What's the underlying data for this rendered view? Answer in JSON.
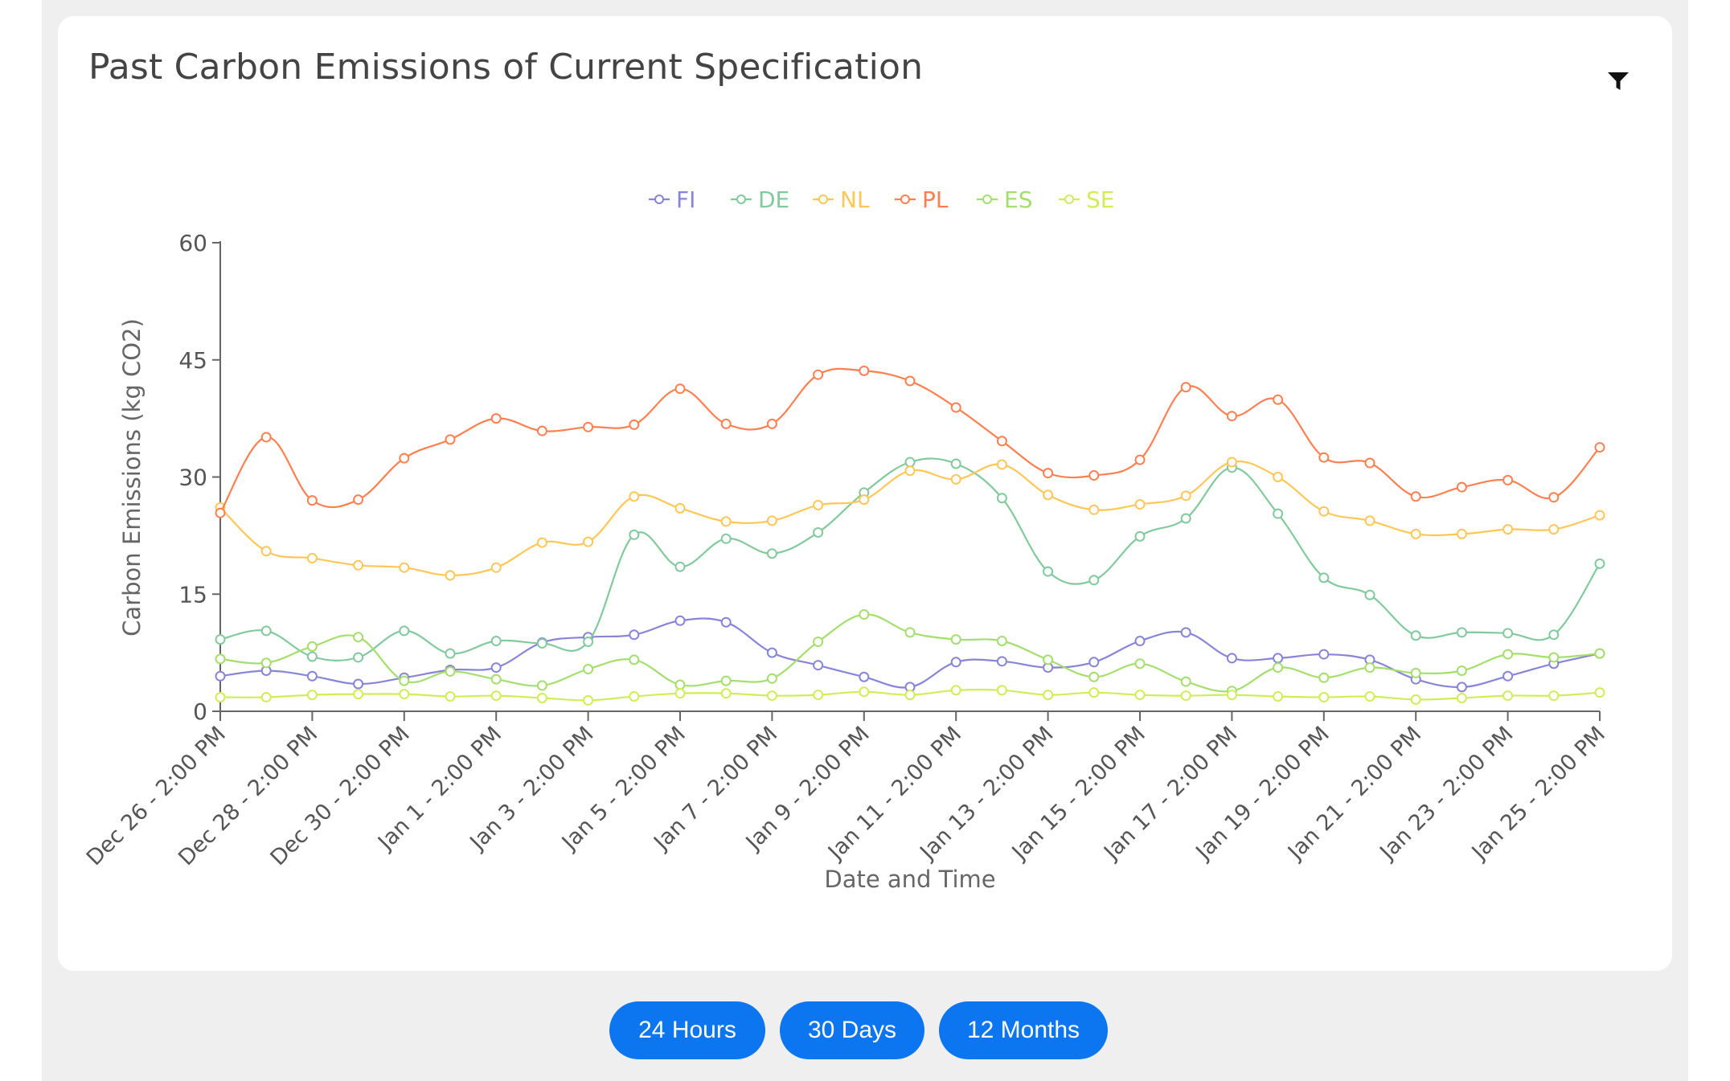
{
  "card": {
    "title": "Past Carbon Emissions of Current Specification"
  },
  "icons": {
    "filter": "filter-icon"
  },
  "time_buttons": {
    "b24h": "24 Hours",
    "b30d": "30 Days",
    "b12m": "12 Months"
  },
  "colors": {
    "button": "#0b76f0"
  },
  "chart_data": {
    "type": "line",
    "xlabel": "Date and Time",
    "ylabel": "Carbon Emissions (kg CO2)",
    "ylim": [
      0,
      60
    ],
    "yticks": [
      0,
      15,
      30,
      45,
      60
    ],
    "legend_position": "top-center",
    "grid": false,
    "x": [
      "Dec 26 - 2:00 PM",
      "Dec 27 - 2:00 PM",
      "Dec 28 - 2:00 PM",
      "Dec 29 - 2:00 PM",
      "Dec 30 - 2:00 PM",
      "Dec 31 - 2:00 PM",
      "Jan 1 - 2:00 PM",
      "Jan 2 - 2:00 PM",
      "Jan 3 - 2:00 PM",
      "Jan 4 - 2:00 PM",
      "Jan 5 - 2:00 PM",
      "Jan 6 - 2:00 PM",
      "Jan 7 - 2:00 PM",
      "Jan 8 - 2:00 PM",
      "Jan 9 - 2:00 PM",
      "Jan 10 - 2:00 PM",
      "Jan 11 - 2:00 PM",
      "Jan 12 - 2:00 PM",
      "Jan 13 - 2:00 PM",
      "Jan 14 - 2:00 PM",
      "Jan 15 - 2:00 PM",
      "Jan 16 - 2:00 PM",
      "Jan 17 - 2:00 PM",
      "Jan 18 - 2:00 PM",
      "Jan 19 - 2:00 PM",
      "Jan 20 - 2:00 PM",
      "Jan 21 - 2:00 PM",
      "Jan 22 - 2:00 PM",
      "Jan 23 - 2:00 PM",
      "Jan 24 - 2:00 PM",
      "Jan 25 - 2:00 PM"
    ],
    "xtick_labels": [
      "Dec 26 - 2:00 PM",
      "Dec 28 - 2:00 PM",
      "Dec 30 - 2:00 PM",
      "Jan 1 - 2:00 PM",
      "Jan 3 - 2:00 PM",
      "Jan 5 - 2:00 PM",
      "Jan 7 - 2:00 PM",
      "Jan 9 - 2:00 PM",
      "Jan 11 - 2:00 PM",
      "Jan 13 - 2:00 PM",
      "Jan 15 - 2:00 PM",
      "Jan 17 - 2:00 PM",
      "Jan 19 - 2:00 PM",
      "Jan 21 - 2:00 PM",
      "Jan 23 - 2:00 PM",
      "Jan 25 - 2:00 PM"
    ],
    "series": [
      {
        "name": "FI",
        "color": "#8884d8",
        "values": [
          4.5,
          5.2,
          4.5,
          3.5,
          4.3,
          5.3,
          5.6,
          8.8,
          9.5,
          9.8,
          11.6,
          11.4,
          7.5,
          5.9,
          4.4,
          3.1,
          6.3,
          6.4,
          5.6,
          6.3,
          9.0,
          10.1,
          6.8,
          6.8,
          7.3,
          6.6,
          4.1,
          3.1,
          4.5,
          6.1,
          7.4
        ]
      },
      {
        "name": "DE",
        "color": "#82ca9d",
        "values": [
          9.2,
          10.3,
          7.0,
          6.9,
          10.3,
          7.4,
          9.0,
          8.7,
          8.9,
          22.6,
          18.5,
          22.1,
          20.2,
          22.9,
          28.0,
          31.9,
          31.7,
          27.3,
          17.9,
          16.8,
          22.4,
          24.7,
          31.2,
          25.3,
          17.1,
          14.9,
          9.7,
          10.1,
          10.0,
          9.8,
          18.9
        ]
      },
      {
        "name": "NL",
        "color": "#ffc658",
        "values": [
          26.1,
          20.5,
          19.6,
          18.7,
          18.4,
          17.4,
          18.4,
          21.6,
          21.7,
          27.5,
          26.0,
          24.3,
          24.4,
          26.4,
          27.1,
          30.8,
          29.7,
          31.6,
          27.7,
          25.8,
          26.5,
          27.6,
          31.9,
          30.0,
          25.6,
          24.4,
          22.7,
          22.7,
          23.3,
          23.3,
          25.1
        ]
      },
      {
        "name": "PL",
        "color": "#ff7f50",
        "values": [
          25.4,
          35.1,
          27.0,
          27.1,
          32.4,
          34.8,
          37.5,
          35.9,
          36.4,
          36.7,
          41.3,
          36.8,
          36.8,
          43.1,
          43.6,
          42.3,
          38.9,
          34.6,
          30.5,
          30.2,
          32.2,
          41.5,
          37.8,
          39.9,
          32.5,
          31.8,
          27.5,
          28.7,
          29.6,
          27.4,
          33.8
        ]
      },
      {
        "name": "ES",
        "color": "#a4de6c",
        "values": [
          6.7,
          6.2,
          8.3,
          9.5,
          3.9,
          5.1,
          4.1,
          3.3,
          5.4,
          6.6,
          3.4,
          3.9,
          4.2,
          8.9,
          12.4,
          10.1,
          9.2,
          9.0,
          6.6,
          4.4,
          6.1,
          3.8,
          2.6,
          5.6,
          4.3,
          5.6,
          4.9,
          5.2,
          7.3,
          6.9,
          7.4
        ]
      },
      {
        "name": "SE",
        "color": "#d0ed57",
        "values": [
          1.8,
          1.8,
          2.1,
          2.2,
          2.2,
          1.9,
          2.0,
          1.7,
          1.4,
          1.9,
          2.3,
          2.3,
          2.0,
          2.1,
          2.5,
          2.1,
          2.7,
          2.7,
          2.1,
          2.4,
          2.1,
          2.0,
          2.1,
          1.9,
          1.8,
          1.9,
          1.5,
          1.7,
          2.0,
          2.0,
          2.4
        ]
      }
    ]
  }
}
